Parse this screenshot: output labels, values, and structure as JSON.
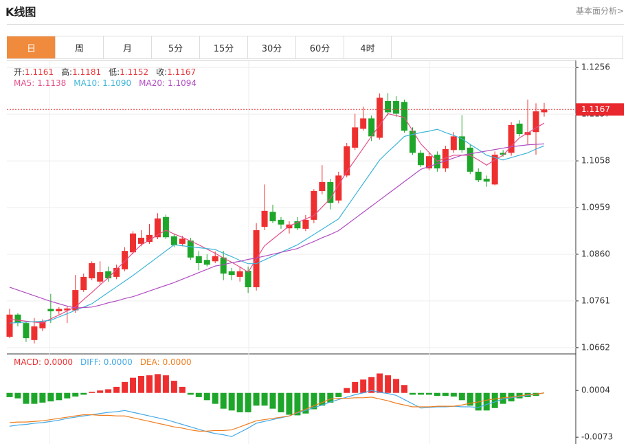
{
  "header": {
    "title": "K线图",
    "link": "基本面分析>"
  },
  "tabs": {
    "items": [
      "日",
      "周",
      "月",
      "5分",
      "15分",
      "30分",
      "60分",
      "4时"
    ],
    "active": 0
  },
  "chart_data": [
    {
      "type": "candlestick",
      "up_color": "#ee2f2f",
      "down_color": "#1ea62a",
      "ylim": [
        1.0653,
        1.1268
      ],
      "yticks": [
        1.0662,
        1.0761,
        {
          "value": 1.086,
          "label": "1.0860"
        },
        1.0959,
        1.1058,
        1.1157,
        1.1256
      ],
      "grid": true,
      "last_price": 1.1167,
      "legend": [
        {
          "label": "开:",
          "value": "1.1161"
        },
        {
          "label": "高:",
          "value": "1.1181"
        },
        {
          "label": "低:",
          "value": "1.1152"
        },
        {
          "label": "收:",
          "value": "1.1167"
        }
      ],
      "ma_legend": [
        {
          "label": "MA5:",
          "value": "1.1138"
        },
        {
          "label": "MA10:",
          "value": "1.1090"
        },
        {
          "label": "MA20:",
          "value": "1.1094"
        }
      ],
      "open": [
        1.0685,
        1.0732,
        1.0714,
        1.0678,
        1.0703,
        1.0744,
        1.0739,
        1.0741,
        1.0741,
        1.0784,
        1.0809,
        1.0802,
        1.0824,
        1.0812,
        1.0828,
        1.0864,
        1.0882,
        1.0886,
        1.0896,
        1.0939,
        1.0898,
        1.0882,
        1.0889,
        1.0856,
        1.0848,
        1.0845,
        1.0853,
        1.0824,
        1.0812,
        1.0825,
        1.079,
        1.0918,
        1.095,
        1.0933,
        1.0915,
        1.093,
        1.0914,
        1.0933,
        1.0994,
        1.1013,
        1.0974,
        1.1027,
        1.1086,
        1.1126,
        1.1148,
        1.1107,
        1.1185,
        1.1185,
        1.1183,
        1.1122,
        1.1075,
        1.1042,
        1.1071,
        1.1042,
        1.1081,
        1.111,
        1.1086,
        1.1035,
        1.102,
        1.1008,
        1.1075,
        1.1075,
        1.1137,
        1.1113,
        1.1119,
        1.1161
      ],
      "high": [
        1.0744,
        1.0735,
        1.0717,
        1.0725,
        1.0722,
        1.0776,
        1.0748,
        1.0751,
        1.0816,
        1.0819,
        1.0845,
        1.0845,
        1.0834,
        1.0838,
        1.0875,
        1.0909,
        1.0911,
        1.0924,
        1.0947,
        1.0944,
        1.0904,
        1.0899,
        1.0895,
        1.0867,
        1.086,
        1.0866,
        1.0867,
        1.0831,
        1.0834,
        1.0834,
        1.0926,
        1.1008,
        1.0965,
        1.0939,
        1.093,
        1.0939,
        1.0943,
        1.0998,
        1.1049,
        1.102,
        1.1035,
        1.1096,
        1.1158,
        1.1173,
        1.1154,
        1.1201,
        1.1202,
        1.1195,
        1.1188,
        1.1129,
        1.1081,
        1.1075,
        1.1078,
        1.109,
        1.1119,
        1.1155,
        1.1093,
        1.1042,
        1.1027,
        1.1078,
        1.1081,
        1.114,
        1.1144,
        1.1188,
        1.118,
        1.1181
      ],
      "low": [
        1.0682,
        1.0707,
        1.0674,
        1.0671,
        1.0697,
        1.0714,
        1.0732,
        1.0714,
        1.0736,
        1.078,
        1.0805,
        1.0797,
        1.0802,
        1.0807,
        1.0824,
        1.086,
        1.0877,
        1.0882,
        1.0892,
        1.0892,
        1.0875,
        1.0877,
        1.0848,
        1.0826,
        1.0834,
        1.0841,
        1.0805,
        1.0805,
        1.0802,
        1.0778,
        1.0783,
        1.0911,
        1.0926,
        1.0914,
        1.0904,
        1.0911,
        1.0909,
        1.0926,
        1.0987,
        1.0955,
        1.0968,
        1.1023,
        1.1081,
        1.1122,
        1.11,
        1.1103,
        1.1154,
        1.1151,
        1.1118,
        1.1071,
        1.1045,
        1.1038,
        1.1035,
        1.1035,
        1.1075,
        1.1075,
        1.103,
        1.1013,
        1.1003,
        1.1006,
        1.1067,
        1.1069,
        1.111,
        1.1093,
        1.1071,
        1.1152
      ],
      "close": [
        1.0732,
        1.0714,
        1.0682,
        1.0707,
        1.0717,
        1.0739,
        1.0744,
        1.0745,
        1.0784,
        1.0812,
        1.0841,
        1.0822,
        1.0809,
        1.0831,
        1.0867,
        1.0904,
        1.0895,
        1.0901,
        1.0936,
        1.0896,
        1.0879,
        1.0893,
        1.0853,
        1.0841,
        1.0838,
        1.0856,
        1.0819,
        1.0816,
        1.0824,
        1.079,
        1.0911,
        1.0952,
        1.093,
        1.0923,
        1.0923,
        1.0915,
        1.0933,
        1.0994,
        1.1013,
        1.0969,
        1.1027,
        1.1089,
        1.1129,
        1.1148,
        1.111,
        1.1192,
        1.1161,
        1.1158,
        1.1122,
        1.1075,
        1.1049,
        1.1068,
        1.1042,
        1.1083,
        1.111,
        1.1081,
        1.1035,
        1.1017,
        1.1014,
        1.1071,
        1.1071,
        1.1134,
        1.1115,
        1.1119,
        1.1163,
        1.1167
      ],
      "series": [
        {
          "color": "#e4508a",
          "values": [
            1.0722,
            1.072,
            1.0718,
            1.0716,
            1.0714,
            1.0723,
            1.0731,
            1.074,
            1.0748,
            1.0764,
            1.0779,
            1.0795,
            1.081,
            1.0828,
            1.0845,
            1.0863,
            1.088,
            1.089,
            1.0901,
            1.0911,
            1.0903,
            1.0896,
            1.0888,
            1.088,
            1.0871,
            1.0862,
            1.0852,
            1.0843,
            1.0833,
            1.0822,
            1.085,
            1.0878,
            1.0892,
            1.0906,
            1.092,
            1.0927,
            1.0935,
            1.0942,
            1.096,
            1.0978,
            1.1007,
            1.1035,
            1.106,
            1.1085,
            1.111,
            1.1134,
            1.1158,
            1.1154,
            1.115,
            1.1122,
            1.1094,
            1.1076,
            1.1057,
            1.1064,
            1.107,
            1.107,
            1.107,
            1.106,
            1.1049,
            1.106,
            1.107,
            1.1089,
            1.1107,
            1.1117,
            1.1128,
            1.1138
          ]
        },
        {
          "color": "#3cb4d8",
          "values": [
            1.0714,
            1.0715,
            1.0716,
            1.0717,
            1.0718,
            1.072,
            1.0727,
            1.0734,
            1.0741,
            1.0748,
            1.0755,
            1.0767,
            1.0779,
            1.0791,
            1.0803,
            1.0815,
            1.0828,
            1.0841,
            1.0854,
            1.0867,
            1.088,
            1.0878,
            1.0876,
            1.0874,
            1.0872,
            1.087,
            1.0862,
            1.0855,
            1.0847,
            1.084,
            1.084,
            1.0848,
            1.0856,
            1.0864,
            1.0872,
            1.088,
            1.0891,
            1.0902,
            1.0913,
            1.0924,
            1.0935,
            1.096,
            1.0985,
            1.101,
            1.1035,
            1.106,
            1.1077,
            1.1093,
            1.111,
            1.1114,
            1.1118,
            1.1121,
            1.1125,
            1.1118,
            1.1112,
            1.1105,
            1.1093,
            1.1082,
            1.107,
            1.1065,
            1.106,
            1.1065,
            1.107,
            1.1075,
            1.1083,
            1.109
          ]
        },
        {
          "color": "#b04cc2",
          "values": [
            1.079,
            1.0784,
            1.0778,
            1.0772,
            1.0766,
            1.076,
            1.0755,
            1.075,
            1.0746,
            1.0747,
            1.0748,
            1.0752,
            1.0757,
            1.0761,
            1.0766,
            1.077,
            1.0776,
            1.0782,
            1.0788,
            1.0794,
            1.08,
            1.0807,
            1.0814,
            1.0821,
            1.0828,
            1.0835,
            1.0838,
            1.0842,
            1.0845,
            1.0849,
            1.0852,
            1.0856,
            1.086,
            1.0864,
            1.0868,
            1.0872,
            1.088,
            1.0887,
            1.0895,
            1.0902,
            1.091,
            1.0923,
            1.0936,
            1.0949,
            1.0962,
            1.0975,
            1.0988,
            1.1001,
            1.1014,
            1.1027,
            1.104,
            1.1046,
            1.1052,
            1.1058,
            1.1064,
            1.107,
            1.1073,
            1.1076,
            1.1079,
            1.1082,
            1.1085,
            1.1088,
            1.109,
            1.1092,
            1.1093,
            1.1094
          ]
        }
      ]
    },
    {
      "type": "macd",
      "up_color": "#ee2f2f",
      "down_color": "#1ea62a",
      "ylim": [
        -0.0083,
        0.0062
      ],
      "yticks": [
        -0.0073,
        0.0004
      ],
      "legend": [
        {
          "label": "MACD:",
          "value": "0.0000"
        },
        {
          "label": "DIFF:",
          "value": "0.0000"
        },
        {
          "label": "DEA:",
          "value": "0.0000"
        }
      ],
      "values": [
        -0.0007,
        -0.0009,
        -0.0018,
        -0.0018,
        -0.0016,
        -0.0014,
        -0.0012,
        -0.0009,
        -0.0006,
        -0.0003,
        0.0002,
        0.0004,
        0.0006,
        0.001,
        0.0018,
        0.0025,
        0.0028,
        0.0029,
        0.0031,
        0.0029,
        0.002,
        0.001,
        -0.0003,
        -0.0007,
        -0.0012,
        -0.0018,
        -0.0026,
        -0.0029,
        -0.0032,
        -0.0032,
        -0.0021,
        -0.0021,
        -0.0026,
        -0.0032,
        -0.0036,
        -0.0037,
        -0.0034,
        -0.0027,
        -0.0021,
        -0.0016,
        -0.0007,
        0.0008,
        0.0018,
        0.0022,
        0.0026,
        0.0032,
        0.0029,
        0.0023,
        0.0013,
        -0.0003,
        -0.0003,
        -0.0003,
        -0.0005,
        -0.0005,
        -0.0006,
        -0.0012,
        -0.0021,
        -0.0029,
        -0.0029,
        -0.0025,
        -0.0018,
        -0.0014,
        -0.0009,
        -0.0007,
        -0.0005,
        0
      ],
      "series": [
        {
          "color": "#44a9e6",
          "values": [
            -0.0055,
            -0.0053,
            -0.0052,
            -0.005,
            -0.0049,
            -0.0047,
            -0.0045,
            -0.0042,
            -0.004,
            -0.0038,
            -0.0036,
            -0.0034,
            -0.0032,
            -0.0031,
            -0.0029,
            -0.0032,
            -0.0035,
            -0.0038,
            -0.0041,
            -0.0044,
            -0.0048,
            -0.0052,
            -0.0056,
            -0.006,
            -0.0064,
            -0.0067,
            -0.0069,
            -0.0072,
            -0.0065,
            -0.0058,
            -0.005,
            -0.0047,
            -0.0044,
            -0.0041,
            -0.0038,
            -0.0033,
            -0.0029,
            -0.0024,
            -0.002,
            -0.0015,
            -0.0011,
            -0.0007,
            -0.0003,
            0,
            0.0004,
            0.0001,
            -0.0001,
            -0.0004,
            -0.0011,
            -0.0018,
            -0.0025,
            -0.0024,
            -0.0023,
            -0.0023,
            -0.0022,
            -0.0023,
            -0.0023,
            -0.0024,
            -0.0019,
            -0.0015,
            -0.001,
            -0.0008,
            -0.0006,
            -0.0004,
            -0.0002,
            0
          ]
        },
        {
          "color": "#ef7d1e",
          "values": [
            -0.0049,
            -0.0048,
            -0.0048,
            -0.0047,
            -0.0046,
            -0.0044,
            -0.0042,
            -0.004,
            -0.0038,
            -0.0036,
            -0.0036,
            -0.0037,
            -0.0037,
            -0.0038,
            -0.0038,
            -0.0041,
            -0.0044,
            -0.0047,
            -0.005,
            -0.0053,
            -0.0056,
            -0.0058,
            -0.0061,
            -0.0063,
            -0.0063,
            -0.0062,
            -0.0062,
            -0.0061,
            -0.0056,
            -0.0051,
            -0.0046,
            -0.0044,
            -0.0042,
            -0.004,
            -0.0038,
            -0.0032,
            -0.0027,
            -0.0021,
            -0.0016,
            -0.001,
            -0.0009,
            -0.0009,
            -0.0008,
            -0.0008,
            -0.0007,
            -0.001,
            -0.0013,
            -0.0017,
            -0.002,
            -0.0023,
            -0.0023,
            -0.0023,
            -0.0022,
            -0.0022,
            -0.0022,
            -0.002,
            -0.0017,
            -0.0015,
            -0.0012,
            -0.001,
            -0.0008,
            -0.0007,
            -0.0005,
            -0.0003,
            -0.0002,
            0
          ]
        }
      ]
    }
  ]
}
